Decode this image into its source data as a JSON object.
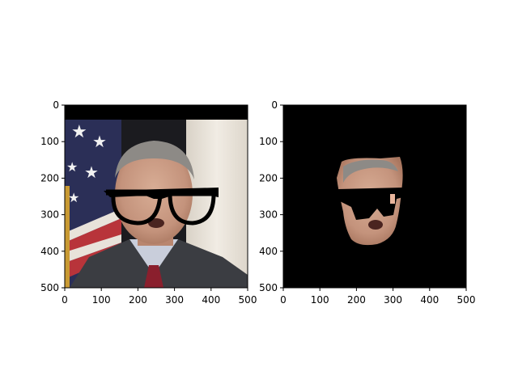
{
  "chart_data": [
    {
      "type": "image",
      "content": "photo of a man in a suit and red tie wearing black glasses overlay, American flag and white curtain background",
      "xlim": [
        0,
        500
      ],
      "ylim": [
        500,
        0
      ],
      "xticks": [
        0,
        100,
        200,
        300,
        400,
        500
      ],
      "yticks": [
        0,
        100,
        200,
        300,
        400,
        500
      ],
      "xtick_labels": [
        "0",
        "100",
        "200",
        "300",
        "400",
        "500"
      ],
      "ytick_labels": [
        "0",
        "100",
        "200",
        "300",
        "400",
        "500"
      ]
    },
    {
      "type": "image",
      "content": "segmented face region on black background with glasses area masked out",
      "xlim": [
        0,
        500
      ],
      "ylim": [
        500,
        0
      ],
      "xticks": [
        0,
        100,
        200,
        300,
        400,
        500
      ],
      "yticks": [
        0,
        100,
        200,
        300,
        400,
        500
      ],
      "xtick_labels": [
        "0",
        "100",
        "200",
        "300",
        "400",
        "500"
      ],
      "ytick_labels": [
        "0",
        "100",
        "200",
        "300",
        "400",
        "500"
      ]
    }
  ],
  "colors": {
    "background": "#ffffff",
    "mask": "#000000",
    "skin": "#c79a83",
    "suit": "#3b3d42",
    "tie": "#8a1f2d",
    "flag_blue": "#2b2f57",
    "flag_red": "#b8343a",
    "curtain": "#e9e3da"
  }
}
